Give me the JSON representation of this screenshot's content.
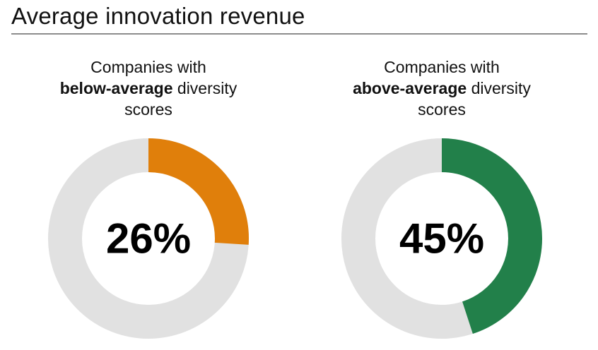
{
  "title": "Average innovation revenue",
  "chart_data": [
    {
      "type": "pie",
      "caption": {
        "pre": "Companies with",
        "emphasis": "below-average",
        "post": "diversity scores"
      },
      "value": 26,
      "value_label": "26%",
      "color": "#E07F0B",
      "track_color": "#E1E1E1"
    },
    {
      "type": "pie",
      "caption": {
        "pre": "Companies with",
        "emphasis": "above-average",
        "post": "diversity scores"
      },
      "value": 45,
      "value_label": "45%",
      "color": "#22804A",
      "track_color": "#E1E1E1"
    }
  ]
}
